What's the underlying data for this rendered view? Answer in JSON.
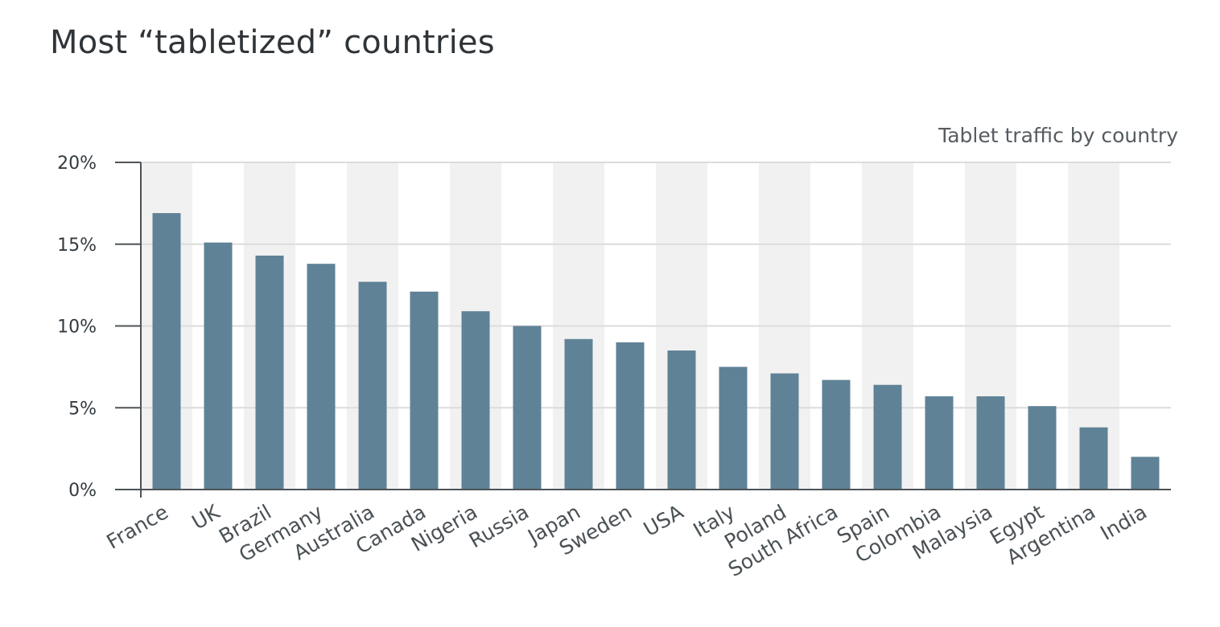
{
  "chart_data": {
    "type": "bar",
    "title": "Most “tabletized” countries",
    "subtitle": "Tablet traffic by country",
    "xlabel": "",
    "ylabel": "",
    "categories": [
      "France",
      "UK",
      "Brazil",
      "Germany",
      "Australia",
      "Canada",
      "Nigeria",
      "Russia",
      "Japan",
      "Sweden",
      "USA",
      "Italy",
      "Poland",
      "South Africa",
      "Spain",
      "Colombia",
      "Malaysia",
      "Egypt",
      "Argentina",
      "India"
    ],
    "values": [
      16.9,
      15.1,
      14.3,
      13.8,
      12.7,
      12.1,
      10.9,
      10.0,
      9.2,
      9.0,
      8.5,
      7.5,
      7.1,
      6.7,
      6.4,
      5.7,
      5.7,
      5.1,
      3.8,
      2.0
    ],
    "ylim": [
      0,
      20
    ],
    "yticks": [
      0,
      5,
      10,
      15,
      20
    ],
    "ytick_labels": [
      "0%",
      "5%",
      "10%",
      "15%",
      "20%"
    ],
    "grid": true,
    "alternating_column_bands": true,
    "colors": {
      "bar": "#5f8296",
      "band": "#f1f1f1",
      "grid": "#dcdcdc",
      "axis": "#4d5357",
      "text": "#333b40"
    }
  }
}
